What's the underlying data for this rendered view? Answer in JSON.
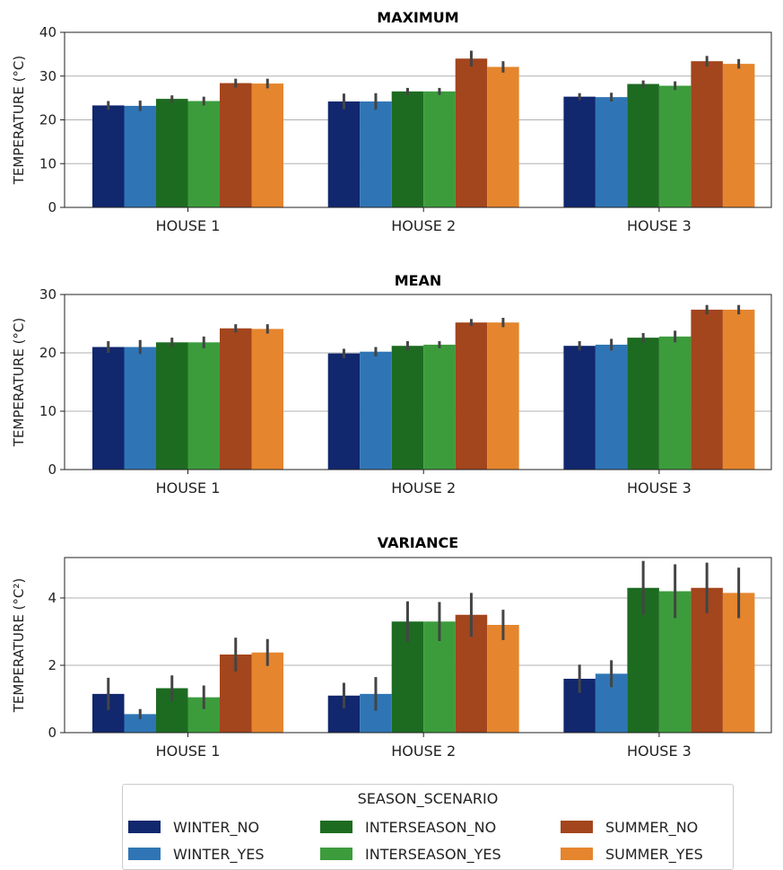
{
  "chart_data": [
    {
      "type": "bar",
      "title": "MAXIMUM",
      "ylabel": "TEMPERATURE (°C)",
      "ylim": [
        0,
        40
      ],
      "yticks": [
        0,
        10,
        20,
        30,
        40
      ],
      "grid": "y",
      "categories": [
        "HOUSE 1",
        "HOUSE 2",
        "HOUSE 3"
      ],
      "series": [
        {
          "name": "WINTER_NO",
          "values": [
            23.3,
            24.2,
            25.3
          ],
          "err": [
            1.0,
            1.8,
            0.8
          ]
        },
        {
          "name": "WINTER_YES",
          "values": [
            23.2,
            24.2,
            25.2
          ],
          "err": [
            1.2,
            1.9,
            1.0
          ]
        },
        {
          "name": "INTERSEASON_NO",
          "values": [
            24.8,
            26.5,
            28.2
          ],
          "err": [
            0.8,
            0.8,
            0.8
          ]
        },
        {
          "name": "INTERSEASON_YES",
          "values": [
            24.3,
            26.5,
            27.8
          ],
          "err": [
            1.0,
            0.8,
            1.0
          ]
        },
        {
          "name": "SUMMER_NO",
          "values": [
            28.4,
            34.0,
            33.4
          ],
          "err": [
            1.0,
            1.8,
            1.2
          ]
        },
        {
          "name": "SUMMER_YES",
          "values": [
            28.3,
            32.1,
            32.8
          ],
          "err": [
            1.1,
            1.3,
            1.1
          ]
        }
      ]
    },
    {
      "type": "bar",
      "title": "MEAN",
      "ylabel": "TEMPERATURE (°C)",
      "ylim": [
        0,
        30
      ],
      "yticks": [
        0,
        10,
        20,
        30
      ],
      "grid": "y",
      "categories": [
        "HOUSE 1",
        "HOUSE 2",
        "HOUSE 3"
      ],
      "series": [
        {
          "name": "WINTER_NO",
          "values": [
            21.0,
            19.9,
            21.2
          ],
          "err": [
            1.0,
            0.8,
            0.8
          ]
        },
        {
          "name": "WINTER_YES",
          "values": [
            21.0,
            20.2,
            21.4
          ],
          "err": [
            1.2,
            0.8,
            1.0
          ]
        },
        {
          "name": "INTERSEASON_NO",
          "values": [
            21.8,
            21.2,
            22.6
          ],
          "err": [
            0.8,
            0.8,
            0.8
          ]
        },
        {
          "name": "INTERSEASON_YES",
          "values": [
            21.8,
            21.4,
            22.8
          ],
          "err": [
            1.0,
            0.6,
            1.0
          ]
        },
        {
          "name": "SUMMER_NO",
          "values": [
            24.2,
            25.2,
            27.4
          ],
          "err": [
            0.7,
            0.6,
            0.8
          ]
        },
        {
          "name": "SUMMER_YES",
          "values": [
            24.1,
            25.2,
            27.4
          ],
          "err": [
            0.8,
            0.8,
            0.8
          ]
        }
      ]
    },
    {
      "type": "bar",
      "title": "VARIANCE",
      "ylabel": "TEMPERATURE (°C²)",
      "ylim": [
        0,
        5.2
      ],
      "yticks": [
        0,
        2,
        4
      ],
      "grid": "y",
      "categories": [
        "HOUSE 1",
        "HOUSE 2",
        "HOUSE 3"
      ],
      "series": [
        {
          "name": "WINTER_NO",
          "values": [
            1.15,
            1.1,
            1.6
          ],
          "err": [
            0.48,
            0.38,
            0.42
          ]
        },
        {
          "name": "WINTER_YES",
          "values": [
            0.55,
            1.15,
            1.75
          ],
          "err": [
            0.15,
            0.5,
            0.4
          ]
        },
        {
          "name": "INTERSEASON_NO",
          "values": [
            1.32,
            3.3,
            4.3
          ],
          "err": [
            0.38,
            0.6,
            0.8
          ]
        },
        {
          "name": "INTERSEASON_YES",
          "values": [
            1.05,
            3.3,
            4.2
          ],
          "err": [
            0.35,
            0.58,
            0.8
          ]
        },
        {
          "name": "SUMMER_NO",
          "values": [
            2.32,
            3.5,
            4.3
          ],
          "err": [
            0.5,
            0.65,
            0.75
          ]
        },
        {
          "name": "SUMMER_YES",
          "values": [
            2.38,
            3.2,
            4.15
          ],
          "err": [
            0.4,
            0.45,
            0.75
          ]
        }
      ]
    }
  ],
  "legend": {
    "title": "SEASON_SCENARIO",
    "placement": "bottom-center",
    "items": [
      {
        "label": "WINTER_NO",
        "color": "#11276e"
      },
      {
        "label": "WINTER_YES",
        "color": "#2f75b5"
      },
      {
        "label": "INTERSEASON_NO",
        "color": "#1d6b21"
      },
      {
        "label": "INTERSEASON_YES",
        "color": "#3c9c3c"
      },
      {
        "label": "SUMMER_NO",
        "color": "#a3451d"
      },
      {
        "label": "SUMMER_YES",
        "color": "#e5852e"
      }
    ]
  },
  "colors": {
    "errorbar": "#444444",
    "grid": "#b0b0b0",
    "axis": "#222222"
  }
}
